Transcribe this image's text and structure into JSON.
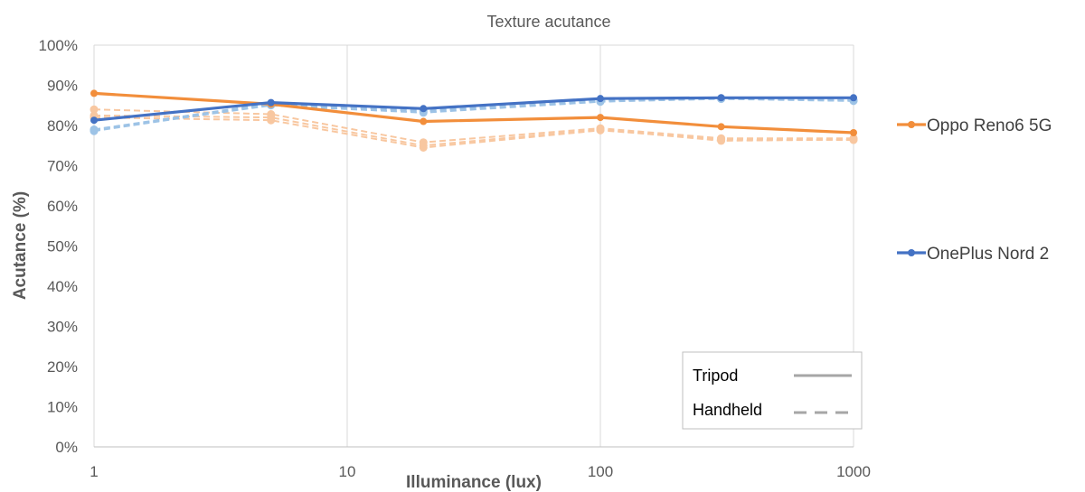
{
  "chart_data": {
    "type": "line",
    "title": "Texture acutance",
    "xlabel": "Illuminance (lux)",
    "ylabel": "Acutance (%)",
    "x_scale": "log",
    "xlim": [
      1,
      1000
    ],
    "ylim": [
      0,
      100
    ],
    "x_ticks": [
      "1",
      "10",
      "100",
      "1000"
    ],
    "y_ticks": [
      "0%",
      "10%",
      "20%",
      "30%",
      "40%",
      "50%",
      "60%",
      "70%",
      "80%",
      "90%",
      "100%"
    ],
    "grid": "vertical at decades",
    "x": [
      1,
      5,
      20,
      100,
      300,
      1000
    ],
    "series": [
      {
        "name": "Oppo Reno6 5G",
        "style": "Tripod",
        "color": "#F28E3B",
        "values": [
          88.0,
          85.3,
          81.0,
          82.0,
          79.7,
          78.2
        ]
      },
      {
        "style": "Handheld",
        "color": "#F8C7A0",
        "values": [
          84.0,
          82.8,
          75.8,
          79.3,
          76.8,
          76.8
        ]
      },
      {
        "style": "Handheld",
        "color": "#F8C7A0",
        "values": [
          82.5,
          82.0,
          75.0,
          79.0,
          76.2,
          76.5
        ]
      },
      {
        "style": "Handheld",
        "color": "#F8C7A0",
        "values": [
          82.0,
          81.3,
          74.5,
          78.8,
          76.5,
          76.4
        ]
      },
      {
        "name": "OnePlus Nord 2",
        "style": "Tripod",
        "color": "#4472C4",
        "values": [
          81.3,
          85.7,
          84.2,
          86.7,
          86.9,
          86.9
        ]
      },
      {
        "style": "Handheld",
        "color": "#9DC3E6",
        "values": [
          79.0,
          85.5,
          83.5,
          86.2,
          86.8,
          86.3
        ]
      },
      {
        "style": "Handheld",
        "color": "#9DC3E6",
        "values": [
          78.6,
          85.2,
          83.8,
          86.0,
          86.6,
          86.1
        ]
      },
      {
        "style": "Handheld",
        "color": "#9DC3E6",
        "values": [
          78.9,
          85.0,
          83.2,
          85.9,
          86.7,
          86.2
        ]
      }
    ],
    "legend": {
      "placement": "right",
      "entries": [
        {
          "label": "Oppo Reno6 5G",
          "color": "#F28E3B"
        },
        {
          "label": "OnePlus Nord 2",
          "color": "#4472C4"
        }
      ]
    },
    "style_legend": {
      "placement": "bottom-right inside plot",
      "entries": [
        {
          "label": "Tripod",
          "line": "solid",
          "color": "#A6A6A6"
        },
        {
          "label": "Handheld",
          "line": "dashed",
          "color": "#A6A6A6"
        }
      ]
    }
  }
}
